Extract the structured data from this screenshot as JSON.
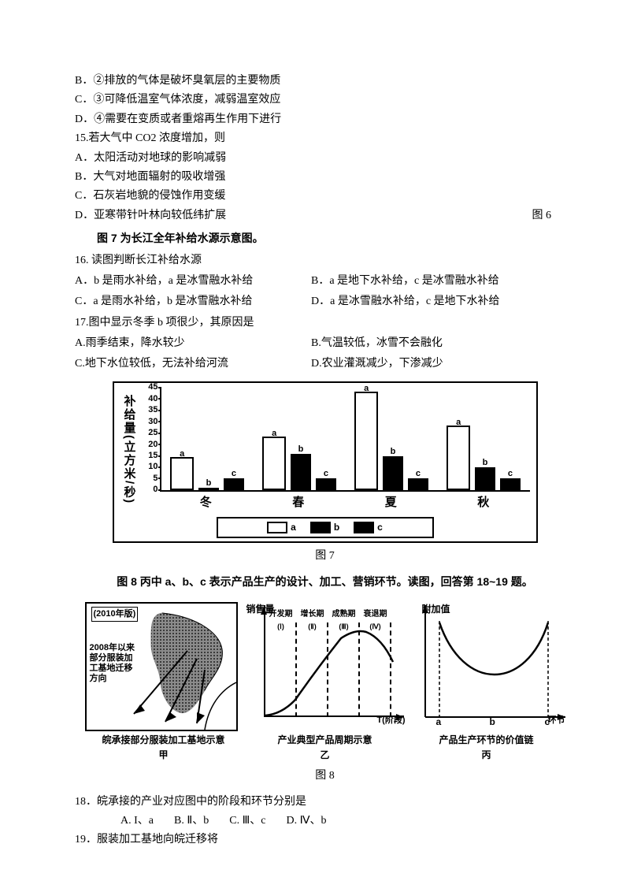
{
  "q14": {
    "b": "B．②排放的气体是破坏臭氧层的主要物质",
    "c": "C．③可降低温室气体浓度，减弱温室效应",
    "d": "D．④需要在变质或者重熔再生作用下进行"
  },
  "q15": {
    "stem": "15.若大气中 CO2 浓度增加，则",
    "a": "A．太阳活动对地球的影响减弱",
    "b": "B．大气对地面辐射的吸收增强",
    "c": "C．石灰岩地貌的侵蚀作用变缓",
    "d": "D．亚寒带针叶林向较低纬扩展",
    "fig6": "图 6"
  },
  "fig7_intro": "图 7 为长江全年补给水源示意图。",
  "q16": {
    "stem": "16. 读图判断长江补给水源",
    "a": "A．b 是雨水补给，a 是冰雪融水补给",
    "b": "B．a 是地下水补给，c 是冰雪融水补给",
    "c": "C．a 是雨水补给，b 是冰雪融水补给",
    "d": "D．a 是冰雪融水补给，c 是地下水补给"
  },
  "q17": {
    "stem": "17.图中显示冬季 b 项很少，其原因是",
    "a": "A.雨季结束，降水较少",
    "b": "B.气温较低，冰雪不会融化",
    "c": "C.地下水位较低，无法补给河流",
    "d": "D.农业灌溉减少，下渗减少"
  },
  "fig7": {
    "caption": "图 7",
    "ylabel": "补给量(立方米/秒)",
    "ymax": 45,
    "yticks": [
      0,
      5,
      10,
      15,
      20,
      25,
      30,
      35,
      40,
      45
    ],
    "seasons": [
      "冬",
      "春",
      "夏",
      "秋"
    ],
    "series": {
      "a": [
        13,
        22,
        42,
        27
      ],
      "b": [
        1,
        16,
        15,
        10
      ],
      "c": [
        5,
        5,
        5,
        5
      ]
    },
    "bar_labels": [
      "a",
      "b",
      "c"
    ],
    "legend": [
      "a",
      "b",
      "c"
    ]
  },
  "fig8_intro": "图 8 丙中 a、b、c 表示产品生产的设计、加工、营销环节。读图，回答第 18~19 题。",
  "fig8": {
    "caption": "图 8",
    "panelA": {
      "topLabel": "(2010年版)",
      "text1": "2008年以来",
      "text2": "部分服装加",
      "text3": "工基地迁移",
      "text4": "方向",
      "caption": "皖承接部分服装加工基地示意",
      "sub": "甲"
    },
    "panelB": {
      "ylabel": "销售量",
      "xlabel": "T(阶段)",
      "stages": [
        "开发期(Ⅰ)",
        "增长期(Ⅱ)",
        "成熟期(Ⅲ)",
        "衰退期(Ⅳ)"
      ],
      "caption": "产业典型产品周期示意",
      "sub": "乙"
    },
    "panelC": {
      "ylabel": "附加值",
      "xlabel": "环节",
      "xticks": [
        "a",
        "b",
        "c"
      ],
      "caption": "产品生产环节的价值链",
      "sub": "丙"
    }
  },
  "q18": {
    "stem": "18．皖承接的产业对应图中的阶段和环节分别是",
    "a": "A. I、a",
    "b": "B. Ⅱ、b",
    "c": "C. Ⅲ、c",
    "d": "D. Ⅳ、b"
  },
  "q19": {
    "stem": "19．服装加工基地向皖迁移将"
  }
}
